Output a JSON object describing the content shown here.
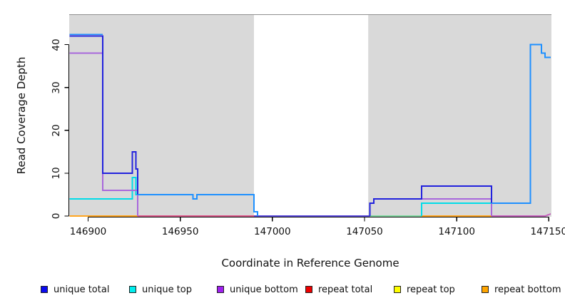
{
  "chart_data": {
    "type": "line",
    "title": "",
    "xlabel": "Coordinate in Reference Genome",
    "ylabel": "Read Coverage Depth",
    "xlim": [
      146890,
      147151
    ],
    "ylim": [
      0,
      47
    ],
    "x_ticks": [
      146900,
      146950,
      147000,
      147050,
      147100,
      147150
    ],
    "y_ticks": [
      0,
      10,
      20,
      30,
      40
    ],
    "grid": false,
    "legend_position": "bottom",
    "plot_bg": "#d9d9d9",
    "outer_bg": "#ffffff",
    "axis_color": "#000000",
    "plot_top_border_color": "#8f8f8f",
    "highlight_region": {
      "x0": 146990,
      "x1": 147052,
      "color": "#ffffff"
    },
    "palette": {
      "unique_total": "#2222dd",
      "overall_total": "#1e90ff",
      "unique_top": "#00dce8",
      "unique_bottom": "#a868dc",
      "repeat_total": "#dc5a8c",
      "repeat_top": "#ffff00",
      "repeat_bottom": "#ffa520",
      "baseline_overlap_green": "#82d8a0",
      "baseline_overlap_orchid": "#c663be",
      "gap_baseline": "#5b4bdb"
    },
    "legend": [
      {
        "label": "unique total",
        "color": "#0a0af0"
      },
      {
        "label": "unique top",
        "color": "#00eeee"
      },
      {
        "label": "unique bottom",
        "color": "#a020f0"
      },
      {
        "label": "repeat total",
        "color": "#ee0000"
      },
      {
        "label": "repeat top",
        "color": "#ffff00"
      },
      {
        "label": "repeat bottom",
        "color": "#ffa500"
      }
    ],
    "segments": [
      {
        "name": "repeat-total-baseline",
        "color_key": "repeat_total",
        "width": 2,
        "points": [
          [
            146927,
            0
          ],
          [
            147053,
            0
          ]
        ]
      },
      {
        "name": "repeat-bottom-baseline-left",
        "color_key": "repeat_bottom",
        "width": 2,
        "points": [
          [
            146890,
            0
          ],
          [
            146927,
            0
          ]
        ]
      },
      {
        "name": "baseline-overlap-green",
        "color_key": "baseline_overlap_green",
        "width": 2,
        "points": [
          [
            147053,
            0
          ],
          [
            147081,
            0
          ]
        ]
      },
      {
        "name": "repeat-bottom-baseline-mid",
        "color_key": "repeat_bottom",
        "width": 2,
        "points": [
          [
            147081,
            0
          ],
          [
            147119,
            0
          ]
        ]
      },
      {
        "name": "baseline-overlap-orchid",
        "color_key": "baseline_overlap_orchid",
        "width": 2,
        "points": [
          [
            147119,
            0
          ],
          [
            147148,
            0
          ],
          [
            147151,
            0.5
          ]
        ]
      },
      {
        "name": "gap-baseline",
        "color_key": "gap_baseline",
        "width": 2,
        "points": [
          [
            146990,
            0
          ],
          [
            147053,
            0
          ]
        ]
      },
      {
        "name": "unique-top-left",
        "color_key": "unique_top",
        "width": 2,
        "points": [
          [
            146890,
            4
          ],
          [
            146924,
            4
          ],
          [
            146924,
            9
          ],
          [
            146926,
            9
          ],
          [
            146926,
            5
          ],
          [
            146927,
            5
          ]
        ]
      },
      {
        "name": "unique-top-right",
        "color_key": "unique_top",
        "width": 2,
        "points": [
          [
            147081,
            0
          ],
          [
            147081,
            3
          ],
          [
            147119,
            3
          ],
          [
            147119,
            0
          ]
        ]
      },
      {
        "name": "unique-bottom-left",
        "color_key": "unique_bottom",
        "width": 2,
        "points": [
          [
            146890,
            38
          ],
          [
            146908,
            38
          ],
          [
            146908,
            6
          ],
          [
            146927,
            6
          ],
          [
            146927,
            0
          ]
        ]
      },
      {
        "name": "unique-bottom-right",
        "color_key": "unique_bottom",
        "width": 2,
        "points": [
          [
            147053,
            0
          ],
          [
            147053,
            3
          ],
          [
            147055,
            3
          ],
          [
            147055,
            4
          ],
          [
            147119,
            4
          ],
          [
            147119,
            0
          ]
        ]
      },
      {
        "name": "overall-total-fringe",
        "color_key": "overall_total",
        "width": 1.6,
        "points": [
          [
            146890,
            42.4
          ],
          [
            146908,
            42.4
          ]
        ]
      },
      {
        "name": "unique-total-left",
        "color_key": "unique_total",
        "width": 2,
        "points": [
          [
            146890,
            42
          ],
          [
            146908,
            42
          ],
          [
            146908,
            10
          ],
          [
            146924,
            10
          ],
          [
            146924,
            15
          ],
          [
            146926,
            15
          ],
          [
            146926,
            11
          ],
          [
            146927,
            11
          ],
          [
            146927,
            5
          ]
        ]
      },
      {
        "name": "unique-total-right",
        "color_key": "unique_total",
        "width": 2,
        "points": [
          [
            147053,
            0
          ],
          [
            147053,
            3
          ],
          [
            147055,
            3
          ],
          [
            147055,
            4
          ],
          [
            147081,
            4
          ],
          [
            147081,
            7
          ],
          [
            147119,
            7
          ],
          [
            147119,
            3
          ]
        ]
      },
      {
        "name": "overall-total-mid",
        "color_key": "overall_total",
        "width": 2,
        "points": [
          [
            146927,
            5
          ],
          [
            146957,
            5
          ],
          [
            146957,
            4
          ],
          [
            146959,
            4
          ],
          [
            146959,
            5
          ],
          [
            146990,
            5
          ],
          [
            146990,
            1
          ],
          [
            146992,
            1
          ],
          [
            146992,
            0
          ]
        ]
      },
      {
        "name": "overall-total-right",
        "color_key": "overall_total",
        "width": 2,
        "points": [
          [
            147119,
            3
          ],
          [
            147140,
            3
          ],
          [
            147140,
            40
          ],
          [
            147146,
            40
          ],
          [
            147146,
            38
          ],
          [
            147148,
            38
          ],
          [
            147148,
            37
          ],
          [
            147151,
            37
          ]
        ]
      }
    ]
  }
}
